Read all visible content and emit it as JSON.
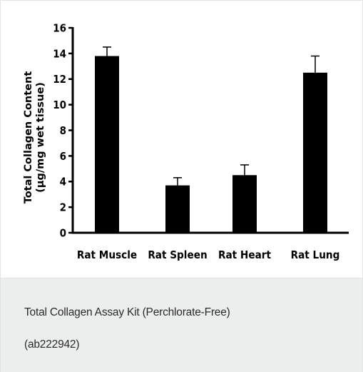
{
  "chart_data": {
    "type": "bar",
    "categories": [
      "Rat Muscle",
      "Rat Spleen",
      "Rat Heart",
      "Rat Lung"
    ],
    "values": [
      13.8,
      3.7,
      4.5,
      12.5
    ],
    "errors": [
      0.7,
      0.6,
      0.8,
      1.3
    ],
    "ylabel_lines": [
      "Total Collagen Content",
      "(µg/mg wet tissue)"
    ],
    "ylim": [
      0,
      16
    ],
    "yticks": [
      0,
      2,
      4,
      6,
      8,
      10,
      12,
      14,
      16
    ],
    "bar_color": "#000000",
    "grid": false
  },
  "caption": {
    "line1": "Total Collagen Assay Kit (Perchlorate-Free)",
    "line2": "(ab222942)"
  }
}
